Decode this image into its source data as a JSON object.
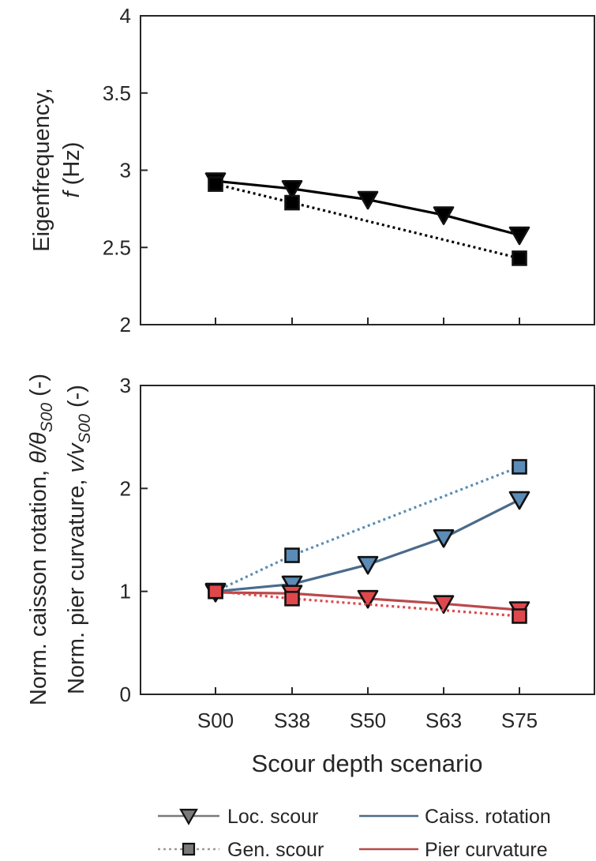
{
  "chart_data": [
    {
      "type": "line",
      "title": "",
      "xlabel": "",
      "ylabel": {
        "line1": "Eigenfrequency,",
        "line2_var": "f",
        "line2_rest": " (Hz)"
      },
      "categories": [
        "S00",
        "S38",
        "S50",
        "S63",
        "S75"
      ],
      "ylim": [
        2,
        4
      ],
      "yticks": [
        "2",
        "2.5",
        "3",
        "3.5",
        "4"
      ],
      "ytick_values": [
        2,
        2.5,
        3,
        3.5,
        4
      ],
      "grid": false,
      "series": [
        {
          "name": "Loc. scour",
          "scenario": "loc",
          "quantity": "eig",
          "marker": "triangle-down",
          "color": "#000000",
          "x": [
            "S00",
            "S38",
            "S50",
            "S63",
            "S75"
          ],
          "values": [
            2.93,
            2.88,
            2.81,
            2.71,
            2.58
          ]
        },
        {
          "name": "Gen. scour",
          "scenario": "gen",
          "quantity": "eig",
          "marker": "square",
          "color": "#000000",
          "x": [
            "S00",
            "S38",
            "S75"
          ],
          "values": [
            2.91,
            2.79,
            2.43
          ]
        }
      ]
    },
    {
      "type": "line",
      "title": "",
      "xlabel": "Scour depth scenario",
      "ylabel": {
        "outer": {
          "prefix": "Norm. caisson rotation, ",
          "sym": "θ/θ",
          "sub": "S00",
          "suffix": " (-)"
        },
        "inner": {
          "prefix": "Norm. pier curvature, ",
          "sym": "v/v",
          "sub": "S00",
          "suffix": " (-)"
        }
      },
      "categories": [
        "S00",
        "S38",
        "S50",
        "S63",
        "S75"
      ],
      "ylim": [
        0,
        3
      ],
      "yticks": [
        "0",
        "1",
        "2",
        "3"
      ],
      "ytick_values": [
        0,
        1,
        2,
        3
      ],
      "grid": false,
      "series": [
        {
          "name": "Caiss. rotation",
          "scenario": "loc",
          "quantity": "rot",
          "marker": "triangle-down",
          "color": "#4a6b8a",
          "fill": "#5b8bb7",
          "x": [
            "S00",
            "S38",
            "S50",
            "S63",
            "S75"
          ],
          "values": [
            1.0,
            1.07,
            1.26,
            1.52,
            1.89
          ]
        },
        {
          "name": "Caiss. rotation",
          "scenario": "gen",
          "quantity": "rot",
          "marker": "square",
          "color": "#5b8bb0",
          "fill": "#5b8bb7",
          "x": [
            "S00",
            "S38",
            "S75"
          ],
          "values": [
            1.0,
            1.35,
            2.21
          ]
        },
        {
          "name": "Pier curvature",
          "scenario": "loc",
          "quantity": "curv",
          "marker": "triangle-down",
          "color": "#b84a4d",
          "fill": "#e0474c",
          "x": [
            "S00",
            "S38",
            "S50",
            "S63",
            "S75"
          ],
          "values": [
            0.99,
            0.98,
            0.93,
            0.88,
            0.82
          ]
        },
        {
          "name": "Pier curvature",
          "scenario": "gen",
          "quantity": "curv",
          "marker": "square",
          "color": "#e0474c",
          "fill": "#e0474c",
          "x": [
            "S00",
            "S38",
            "S75"
          ],
          "values": [
            1.0,
            0.93,
            0.76
          ]
        }
      ]
    }
  ],
  "legend": {
    "placement": "bottom",
    "items": [
      {
        "id": "loc",
        "label": "Loc. scour",
        "style": "solid",
        "color": "#7a7a7a",
        "marker": "triangle-down",
        "marker_fill": "#7a7a7a"
      },
      {
        "id": "rot",
        "label": "Caiss. rotation",
        "style": "solid",
        "color": "#4a6b8a",
        "marker": "none"
      },
      {
        "id": "gen",
        "label": "Gen. scour",
        "style": "dotted",
        "color": "#9a9a9a",
        "marker": "square",
        "marker_fill": "#7a7a7a"
      },
      {
        "id": "curv",
        "label": "Pier curvature",
        "style": "solid",
        "color": "#b84a4d",
        "marker": "none"
      }
    ]
  }
}
